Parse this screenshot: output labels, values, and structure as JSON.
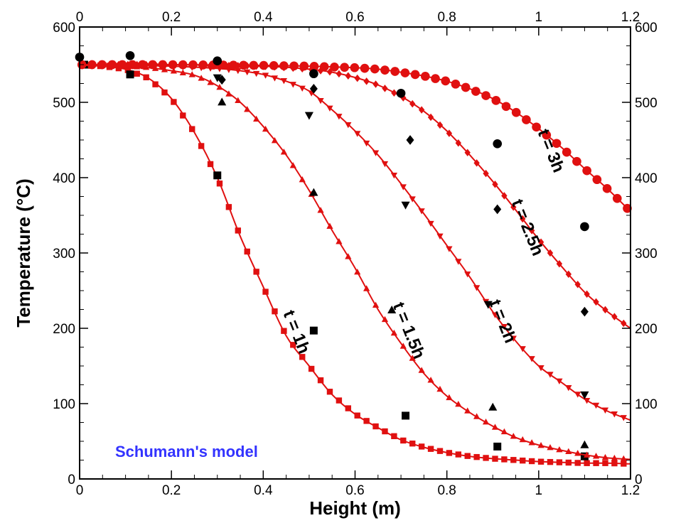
{
  "chart_data": {
    "type": "scatter",
    "title": "",
    "xlabel": "Height (m)",
    "ylabel": "Temperature (°C)",
    "xlim": [
      0,
      1.2
    ],
    "ylim": [
      0,
      600
    ],
    "x_ticks": [
      "0",
      "0.2",
      "0.4",
      "0.6",
      "0.8",
      "1",
      "1.2"
    ],
    "y_ticks": [
      "0",
      "100",
      "200",
      "300",
      "400",
      "500",
      "600"
    ],
    "x_tick_values": [
      0,
      0.2,
      0.4,
      0.6,
      0.8,
      1.0,
      1.2
    ],
    "y_tick_values": [
      0,
      100,
      200,
      300,
      400,
      500,
      600
    ],
    "mirror_axes": true,
    "grid": false,
    "annotation": "Schumann's model",
    "annotation_color": "#3333ff",
    "model_color": "#e01010",
    "experiment_color": "#000000",
    "series": [
      {
        "curve_label": "t = 1h",
        "marker": "square",
        "model": {
          "x": [
            0,
            0.05,
            0.1,
            0.15,
            0.2,
            0.25,
            0.3,
            0.35,
            0.4,
            0.45,
            0.5,
            0.55,
            0.6,
            0.65,
            0.7,
            0.75,
            0.8,
            0.85,
            0.9,
            0.95,
            1.0,
            1.05,
            1.1,
            1.15,
            1.2
          ],
          "y": [
            549,
            548,
            544,
            532,
            505,
            460,
            400,
            322,
            255,
            190,
            150,
            112,
            86,
            68,
            52,
            42,
            35,
            30,
            27,
            25,
            23,
            22,
            21,
            21,
            20
          ]
        },
        "experiment": {
          "x": [
            0.01,
            0.11,
            0.3,
            0.51,
            0.71,
            0.91,
            1.1
          ],
          "y": [
            550,
            537,
            403,
            197,
            84,
            43,
            30
          ]
        }
      },
      {
        "curve_label": "t = 1.5h",
        "marker": "triangle-up",
        "model": {
          "x": [
            0,
            0.05,
            0.1,
            0.15,
            0.2,
            0.25,
            0.3,
            0.35,
            0.4,
            0.45,
            0.5,
            0.55,
            0.6,
            0.65,
            0.7,
            0.75,
            0.8,
            0.85,
            0.9,
            0.95,
            1.0,
            1.05,
            1.1,
            1.15,
            1.2
          ],
          "y": [
            549,
            549,
            548,
            546,
            542,
            536,
            522,
            500,
            468,
            430,
            383,
            330,
            280,
            225,
            180,
            140,
            110,
            88,
            70,
            55,
            45,
            38,
            32,
            28,
            26
          ]
        },
        "experiment": {
          "x": [
            0.31,
            0.51,
            0.68,
            0.9,
            1.1
          ],
          "y": [
            500,
            380,
            224,
            95,
            45
          ]
        }
      },
      {
        "curve_label": "t = 2h",
        "marker": "triangle-down",
        "model": {
          "x": [
            0,
            0.1,
            0.2,
            0.3,
            0.35,
            0.4,
            0.45,
            0.5,
            0.55,
            0.6,
            0.65,
            0.7,
            0.75,
            0.8,
            0.85,
            0.9,
            0.95,
            1.0,
            1.05,
            1.1,
            1.15,
            1.2
          ],
          "y": [
            550,
            549,
            548,
            545,
            542,
            537,
            528,
            515,
            490,
            462,
            430,
            392,
            352,
            310,
            268,
            222,
            183,
            150,
            128,
            106,
            90,
            78
          ]
        },
        "experiment": {
          "x": [
            0.3,
            0.5,
            0.71,
            0.89,
            1.1
          ],
          "y": [
            533,
            483,
            364,
            232,
            112
          ]
        }
      },
      {
        "curve_label": "t = 2.5h",
        "marker": "diamond",
        "model": {
          "x": [
            0,
            0.2,
            0.4,
            0.5,
            0.55,
            0.6,
            0.65,
            0.7,
            0.75,
            0.8,
            0.85,
            0.9,
            0.95,
            1.0,
            1.05,
            1.1,
            1.15,
            1.2
          ],
          "y": [
            550,
            550,
            548,
            544,
            540,
            533,
            523,
            508,
            488,
            462,
            430,
            395,
            357,
            318,
            282,
            248,
            222,
            200
          ]
        },
        "experiment": {
          "x": [
            0.31,
            0.51,
            0.72,
            0.91,
            1.1
          ],
          "y": [
            530,
            518,
            450,
            358,
            222
          ]
        }
      },
      {
        "curve_label": "t = 3h",
        "marker": "circle",
        "model": {
          "x": [
            0,
            0.2,
            0.4,
            0.5,
            0.6,
            0.65,
            0.7,
            0.75,
            0.8,
            0.85,
            0.9,
            0.95,
            1.0,
            1.05,
            1.1,
            1.15,
            1.2
          ],
          "y": [
            550,
            550,
            549,
            548,
            546,
            544,
            540,
            535,
            528,
            518,
            505,
            487,
            465,
            440,
            412,
            385,
            355
          ]
        },
        "experiment": {
          "x": [
            0.0,
            0.11,
            0.3,
            0.51,
            0.7,
            0.91,
            1.1
          ],
          "y": [
            560,
            562,
            555,
            538,
            512,
            445,
            335
          ]
        }
      }
    ]
  }
}
